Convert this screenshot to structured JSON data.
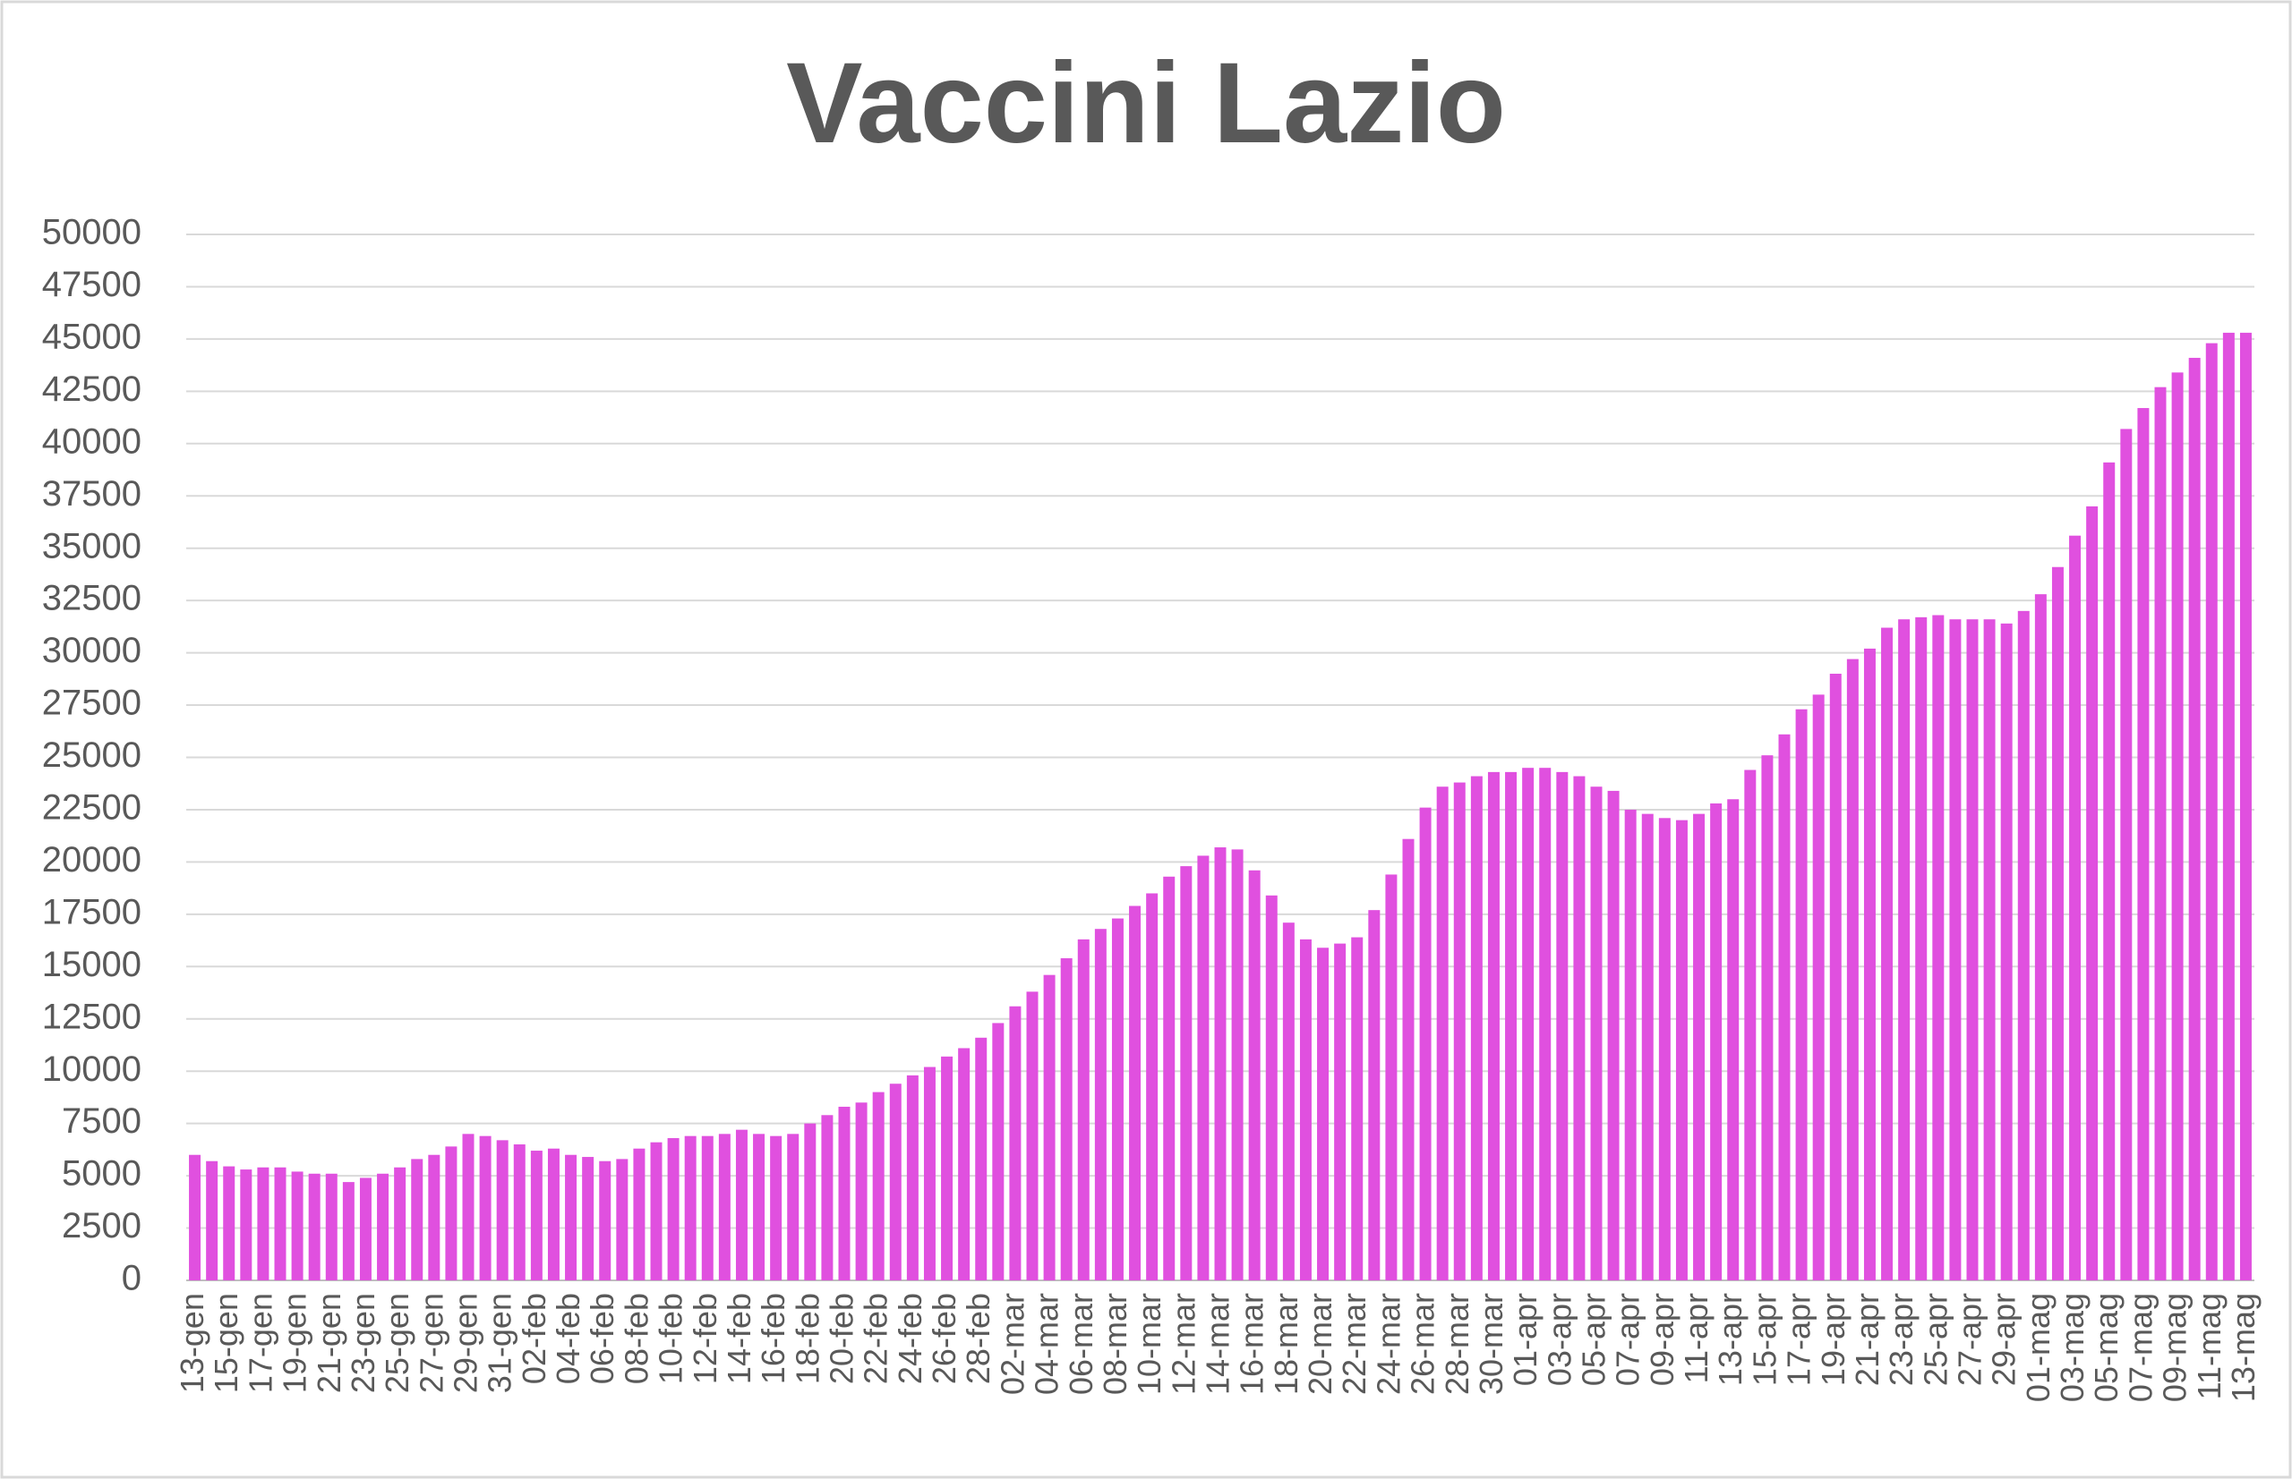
{
  "chart_data": {
    "type": "bar",
    "title": "Vaccini Lazio",
    "color": "#e050df",
    "grid": true,
    "ylim": [
      0,
      50000
    ],
    "yticks": [
      0,
      2500,
      5000,
      7500,
      10000,
      12500,
      15000,
      17500,
      20000,
      22500,
      25000,
      27500,
      30000,
      32500,
      35000,
      37500,
      40000,
      42500,
      45000,
      47500,
      50000
    ],
    "categories": [
      "13-gen",
      null,
      "15-gen",
      null,
      "17-gen",
      null,
      "19-gen",
      null,
      "21-gen",
      null,
      "23-gen",
      null,
      "25-gen",
      null,
      "27-gen",
      null,
      "29-gen",
      null,
      "31-gen",
      null,
      "02-feb",
      null,
      "04-feb",
      null,
      "06-feb",
      null,
      "08-feb",
      null,
      "10-feb",
      null,
      "12-feb",
      null,
      "14-feb",
      null,
      "16-feb",
      null,
      "18-feb",
      null,
      "20-feb",
      null,
      "22-feb",
      null,
      "24-feb",
      null,
      "26-feb",
      null,
      "28-feb",
      null,
      "02-mar",
      null,
      "04-mar",
      null,
      "06-mar",
      null,
      "08-mar",
      null,
      "10-mar",
      null,
      "12-mar",
      null,
      "14-mar",
      null,
      "16-mar",
      null,
      "18-mar",
      null,
      "20-mar",
      null,
      "22-mar",
      null,
      "24-mar",
      null,
      "26-mar",
      null,
      "28-mar",
      null,
      "30-mar",
      null,
      "01-apr",
      null,
      "03-apr",
      null,
      "05-apr",
      null,
      "07-apr",
      null,
      "09-apr",
      null,
      "11-apr",
      null,
      "13-apr",
      null,
      "15-apr",
      null,
      "17-apr",
      null,
      "19-apr",
      null,
      "21-apr",
      null,
      "23-apr",
      null,
      "25-apr",
      null,
      "27-apr",
      null,
      "29-apr",
      null,
      "01-mag",
      null,
      "03-mag",
      null,
      "05-mag",
      null,
      "07-mag",
      null,
      "09-mag",
      null,
      "11-mag",
      null,
      "13-mag"
    ],
    "values": [
      6000,
      5700,
      5450,
      5300,
      5400,
      5400,
      5200,
      5100,
      5100,
      4700,
      4900,
      5100,
      5400,
      5800,
      6000,
      6400,
      7000,
      6900,
      6700,
      6500,
      6200,
      6300,
      6000,
      5900,
      5700,
      5800,
      6300,
      6600,
      6800,
      6900,
      6900,
      7000,
      7200,
      7000,
      6900,
      7000,
      7500,
      7900,
      8300,
      8500,
      9000,
      9400,
      9800,
      10200,
      10700,
      11100,
      11600,
      12300,
      13100,
      13800,
      14600,
      15400,
      16300,
      16800,
      17300,
      17900,
      18500,
      19300,
      19800,
      20300,
      20700,
      20600,
      19600,
      18400,
      17100,
      16300,
      15900,
      16100,
      16400,
      17700,
      19400,
      21100,
      22600,
      23600,
      23800,
      24100,
      24300,
      24300,
      24500,
      24500,
      24300,
      24100,
      23600,
      23400,
      22500,
      22300,
      22100,
      22000,
      22300,
      22800,
      23000,
      24400,
      25100,
      26100,
      27300,
      28000,
      29000,
      29700,
      30200,
      31200,
      31600,
      31700,
      31800,
      31600,
      31600,
      31600,
      31400,
      32000,
      32800,
      34100,
      35600,
      37000,
      39100,
      40700,
      41700,
      42700,
      43400,
      44100,
      44800,
      45300,
      45300
    ]
  }
}
